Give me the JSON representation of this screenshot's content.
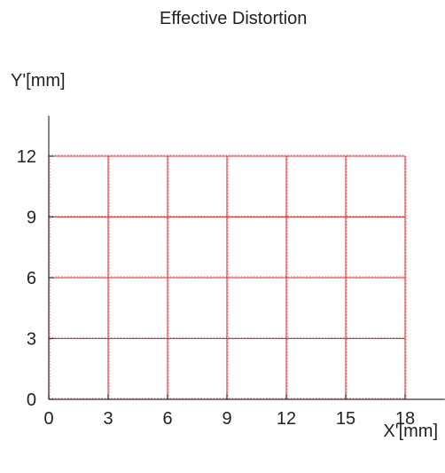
{
  "chart_data": {
    "type": "line",
    "title": "Effective Distortion",
    "xlabel": "X'[mm]",
    "ylabel": "Y'[mm]",
    "x_ticks": [
      0,
      3,
      6,
      9,
      12,
      15,
      18
    ],
    "y_ticks": [
      0,
      3,
      6,
      9,
      12
    ],
    "xlim": [
      0,
      20
    ],
    "ylim": [
      0,
      14
    ],
    "grid": "distortion grid",
    "series_color": "#d9343a",
    "axis_color": "#333333",
    "grid_x": [
      0,
      3,
      6,
      9,
      12,
      15,
      18
    ],
    "grid_y": [
      0,
      3,
      6,
      9,
      12
    ]
  }
}
